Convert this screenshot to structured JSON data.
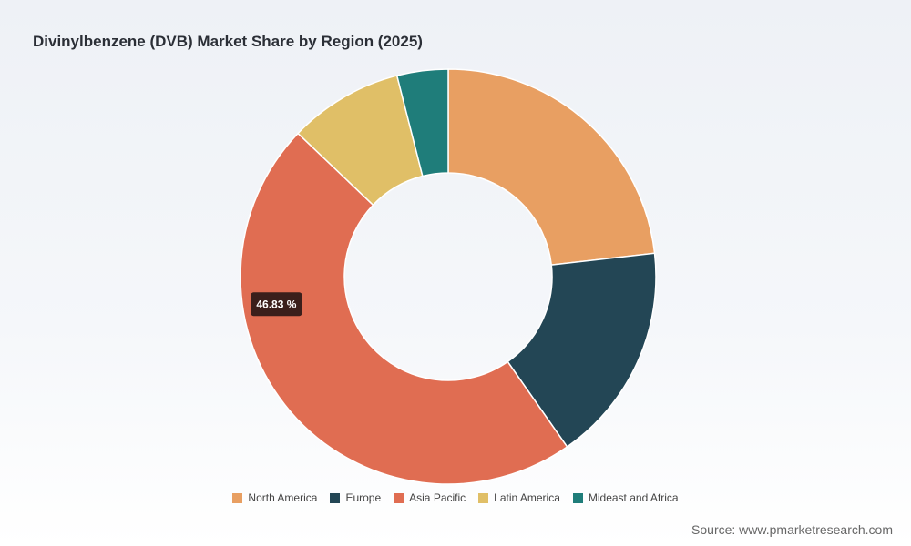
{
  "title": "Divinylbenzene (DVB) Market Share by Region (2025)",
  "source": "Source: www.pmarketresearch.com",
  "chart_data": {
    "type": "pie",
    "donut": true,
    "categories": [
      "North America",
      "Europe",
      "Asia Pacific",
      "Latin America",
      "Mideast and Africa"
    ],
    "values": [
      23.2,
      17.1,
      46.83,
      8.9,
      3.97
    ],
    "colors": [
      "#e89f62",
      "#234655",
      "#e06d52",
      "#e0bf67",
      "#1f7d7a"
    ],
    "data_labels": [
      {
        "category": "Asia Pacific",
        "text": "46.83 %"
      }
    ],
    "legend_position": "bottom",
    "start_angle_deg": 0,
    "direction": "clockwise"
  }
}
